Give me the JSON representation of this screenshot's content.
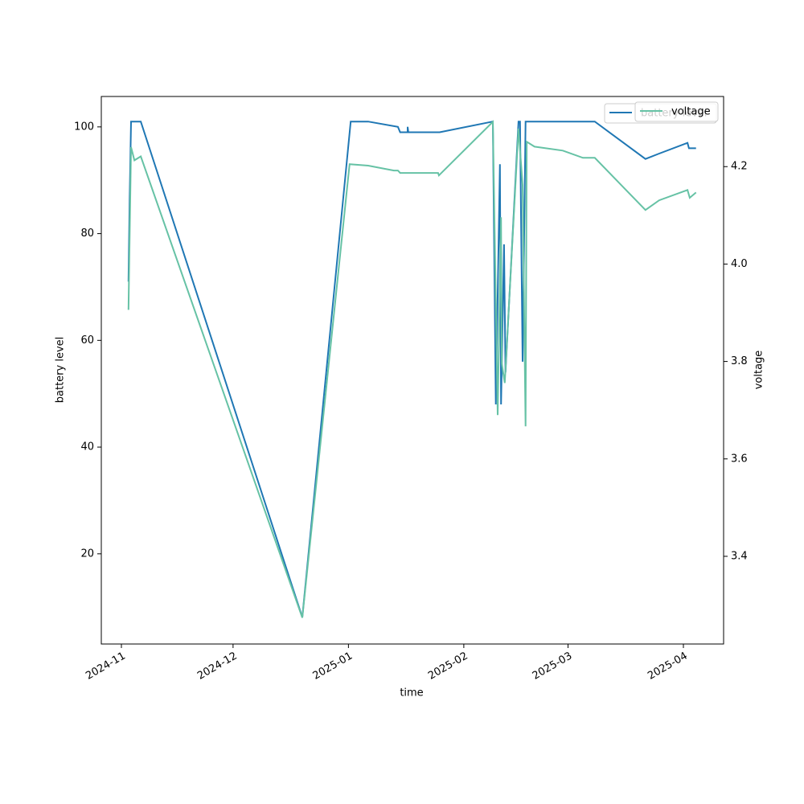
{
  "chart_data": {
    "type": "line",
    "xlabel": "time",
    "ylabel": "battery level",
    "y2label": "voltage",
    "xlim": [
      -5.4,
      161.8
    ],
    "xticks": [
      {
        "value": 0,
        "label": "2024-11"
      },
      {
        "value": 30,
        "label": "2024-12"
      },
      {
        "value": 61,
        "label": "2025-01"
      },
      {
        "value": 92,
        "label": "2025-02"
      },
      {
        "value": 120,
        "label": "2025-03"
      },
      {
        "value": 151,
        "label": "2025-04"
      }
    ],
    "ylim": [
      3.1,
      105.7
    ],
    "yticks": [
      20,
      40,
      60,
      80,
      100
    ],
    "y2lim": [
      3.22,
      4.344
    ],
    "y2ticks": [
      3.4,
      3.6,
      3.8,
      {
        "value": 4.0,
        "label": "4.0"
      },
      4.2
    ],
    "legend": "upper right",
    "series": [
      {
        "name": "battery level",
        "color": "#1f77b4",
        "axis": "y",
        "x": [
          1.9,
          2.2,
          2.6,
          5.2,
          48.6,
          61.6,
          66.3,
          74.3,
          74.9,
          76.9,
          76.9,
          77.1,
          85.5,
          99.8,
          100.6,
          101.7,
          102,
          102.8,
          103.2,
          106.7,
          107.1,
          107.8,
          108.6,
          127.2,
          140.8,
          144.5,
          152.1,
          152.5,
          154.4
        ],
        "values": [
          71,
          86,
          101,
          101,
          8.1,
          101,
          101,
          100,
          99,
          99,
          100,
          99,
          99,
          101,
          48,
          93,
          48,
          78,
          54,
          101,
          101,
          56,
          101,
          101,
          94,
          95,
          97,
          96,
          96
        ]
      },
      {
        "name": "voltage",
        "color": "#66c2a5",
        "axis": "y2",
        "x": [
          1.9,
          2.6,
          3.5,
          5.2,
          48.6,
          61.3,
          66.3,
          73.2,
          74.3,
          74.9,
          85.1,
          85.3,
          99.8,
          101.1,
          102,
          102.2,
          103,
          106.7,
          107.8,
          108.6,
          108.9,
          111,
          118.6,
          124,
          127.2,
          140.8,
          144.5,
          152.1,
          152.7,
          154.4
        ],
        "values": [
          3.906,
          4.24,
          4.213,
          4.221,
          3.274,
          4.205,
          4.202,
          4.192,
          4.192,
          4.187,
          4.187,
          4.182,
          4.292,
          3.69,
          4.096,
          3.796,
          3.756,
          4.278,
          4.162,
          3.667,
          4.251,
          4.241,
          4.233,
          4.218,
          4.218,
          4.111,
          4.131,
          4.152,
          4.136,
          4.147
        ]
      }
    ]
  }
}
